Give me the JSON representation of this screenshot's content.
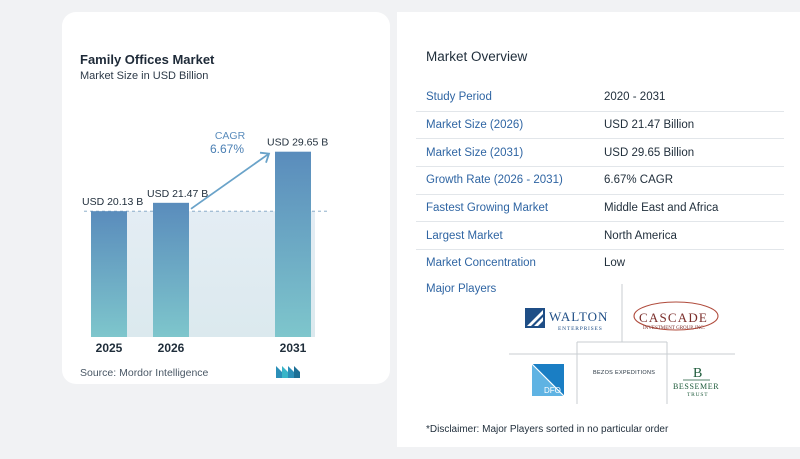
{
  "chart": {
    "title": "Family Offices Market",
    "subtitle": "Market Size in USD Billion",
    "source": "Source:  Mordor Intelligence",
    "cagr_label": "CAGR",
    "cagr_value": "6.67%"
  },
  "chart_data": {
    "type": "bar",
    "categories": [
      "2025",
      "2026",
      "2031"
    ],
    "values": [
      20.13,
      21.47,
      29.65
    ],
    "data_labels": [
      "USD 20.13 B",
      "USD 21.47 B",
      "USD 29.65 B"
    ],
    "title": "Family Offices Market",
    "subtitle": "Market Size in USD Billion",
    "xlabel": "",
    "ylabel": "",
    "annotation": "CAGR 6.67%",
    "colors": {
      "bar_top": "#5a8cbc",
      "bar_bottom": "#7ec6cc",
      "band": "#dde8f0",
      "arrow": "#6aa3c9"
    }
  },
  "overview": {
    "title": "Market Overview",
    "rows": [
      {
        "label": "Study Period",
        "value": "2020 - 2031"
      },
      {
        "label": "Market Size (2026)",
        "value": "USD 21.47 Billion"
      },
      {
        "label": "Market Size (2031)",
        "value": "USD 29.65 Billion"
      },
      {
        "label": "Growth Rate (2026 - 2031)",
        "value": "6.67% CAGR"
      },
      {
        "label": "Fastest Growing Market",
        "value": "Middle East and Africa"
      },
      {
        "label": "Largest Market",
        "value": "North America"
      },
      {
        "label": "Market Concentration",
        "value": "Low"
      }
    ]
  },
  "players": {
    "title": "Major Players",
    "walton": {
      "name": "WALTON",
      "sub": "ENTERPRISES"
    },
    "cascade": {
      "name": "CASCADE",
      "sub": "INVESTMENT GROUP, INC."
    },
    "dfo": {
      "name": "DFO"
    },
    "bezos": {
      "name": "BEZOS EXPEDITIONS"
    },
    "bessemer": {
      "mark": "B",
      "name": "BESSEMER",
      "sub": "TRUST"
    }
  },
  "disclaimer": "*Disclaimer: Major Players sorted in no particular order",
  "colors": {
    "label_blue": "#2f65a3",
    "background": "#f1f2f4"
  }
}
